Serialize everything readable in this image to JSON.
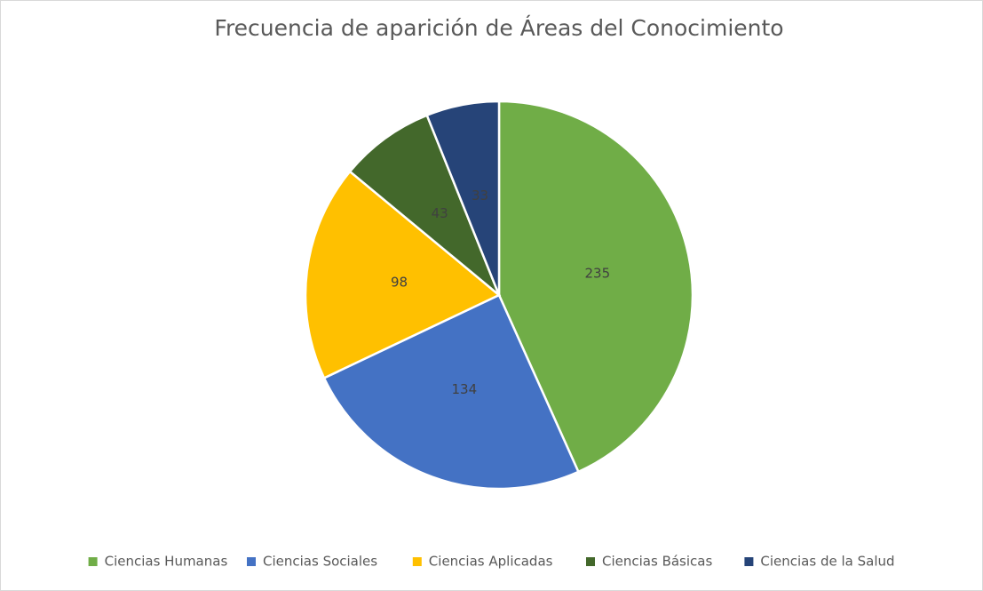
{
  "chart_data": {
    "type": "pie",
    "title": "Frecuencia de aparición de Áreas del Conocimiento",
    "categories": [
      "Ciencias Humanas",
      "Ciencias Sociales",
      "Ciencias Aplicadas",
      "Ciencias Básicas",
      "Ciencias de la Salud"
    ],
    "values": [
      235,
      134,
      98,
      43,
      33
    ],
    "colors": [
      "#70ad47",
      "#4472c4",
      "#ffc000",
      "#43682b",
      "#264478"
    ],
    "legend": "bottom"
  }
}
